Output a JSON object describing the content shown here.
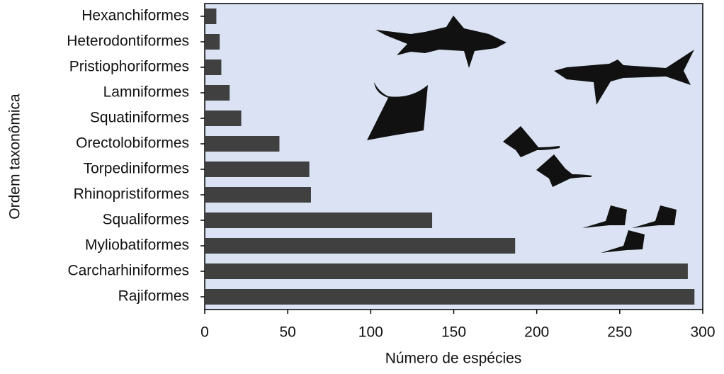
{
  "chart_data": {
    "type": "barh",
    "xlabel": "Número de espécies",
    "ylabel": "Ordem taxonômica",
    "categories": [
      "Hexanchiformes",
      "Heterodontiformes",
      "Pristiophoriformes",
      "Lamniformes",
      "Squatiniformes",
      "Orectolobiformes",
      "Torpediniformes",
      "Rhinopristiformes",
      "Squaliformes",
      "Myliobatiformes",
      "Carcharhiniformes",
      "Rajiformes"
    ],
    "values": [
      7,
      9,
      10,
      15,
      22,
      45,
      63,
      64,
      137,
      187,
      291,
      295
    ],
    "color": "#404040",
    "background": "#dae2f3",
    "xlim": [
      0,
      300
    ],
    "xticks": [
      0,
      50,
      100,
      150,
      200,
      250,
      300
    ]
  }
}
